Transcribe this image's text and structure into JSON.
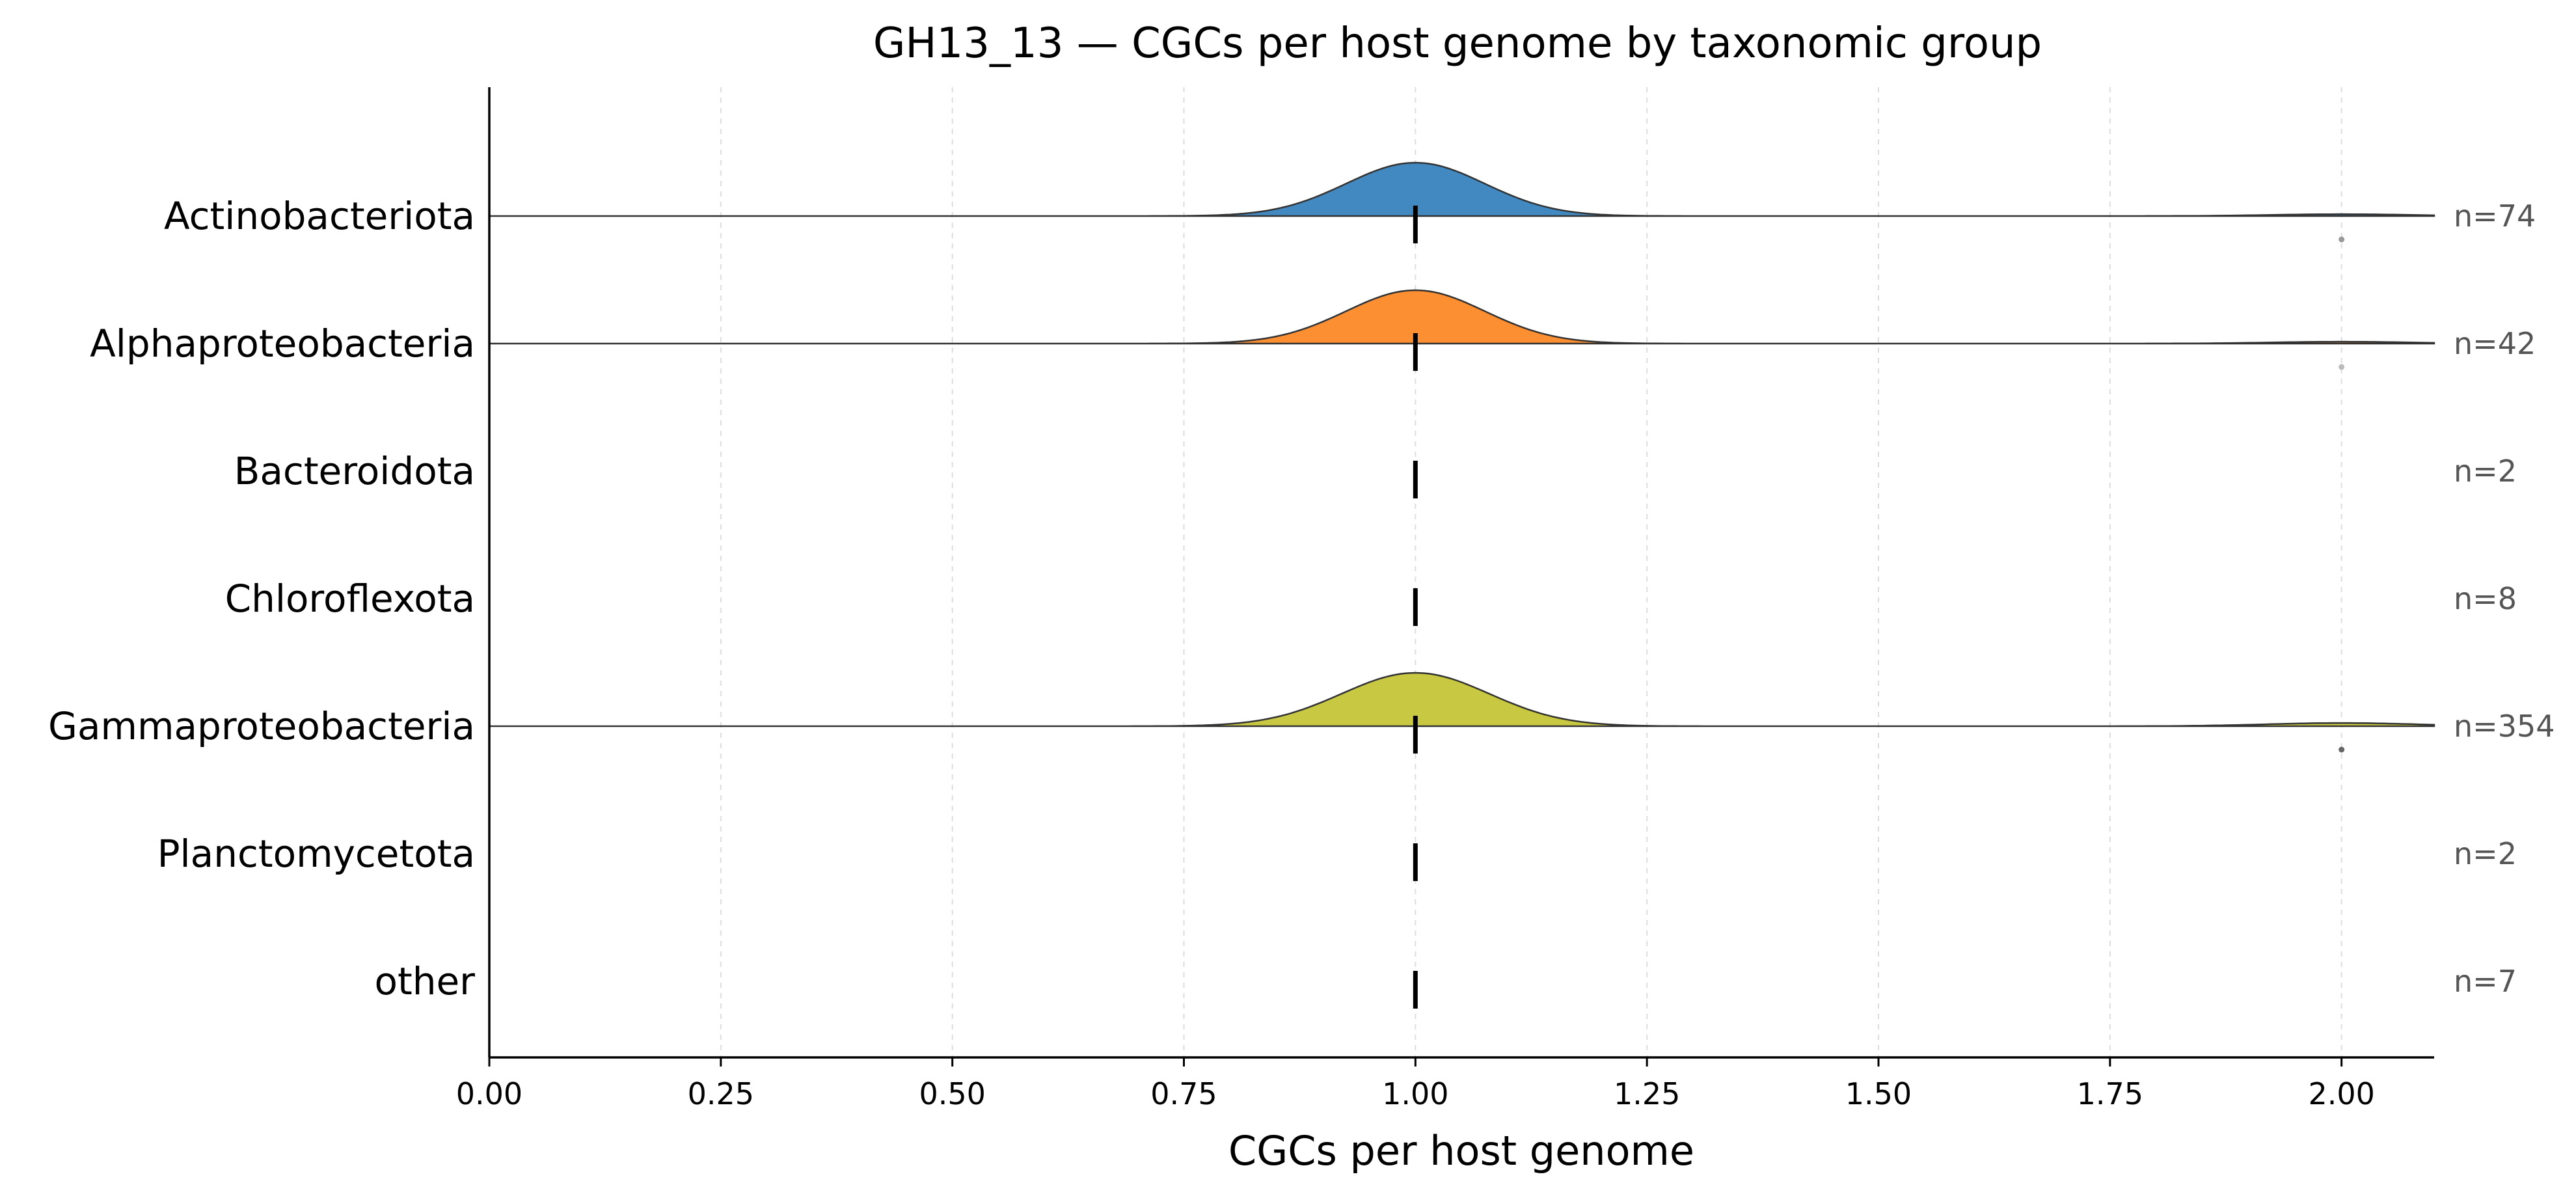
{
  "chart_data": {
    "type": "ridgeline",
    "title": "GH13_13 — CGCs per host genome by taxonomic group",
    "xlabel": "CGCs per host genome",
    "ylabel": "",
    "xlim": [
      0.0,
      2.1
    ],
    "x_ticks": [
      0.0,
      0.25,
      0.5,
      0.75,
      1.0,
      1.25,
      1.5,
      1.75,
      2.0
    ],
    "x_tick_labels": [
      "0.00",
      "0.25",
      "0.50",
      "0.75",
      "1.00",
      "1.25",
      "1.50",
      "1.75",
      "2.00"
    ],
    "grid": "x-dashed",
    "groups": [
      {
        "name": "Actinobacteriota",
        "n_label": "n=74",
        "n": 74,
        "median": 1.0,
        "color": "#4289c1",
        "has_density": true,
        "peak": 1.0,
        "spread": 0.075,
        "secondary_mode": 2.0,
        "secondary_rel_height": 0.035,
        "outlier_x": 2.0,
        "outlier_color": "#999999"
      },
      {
        "name": "Alphaproteobacteria",
        "n_label": "n=42",
        "n": 42,
        "median": 1.0,
        "color": "#fd8f33",
        "has_density": true,
        "peak": 1.0,
        "spread": 0.075,
        "secondary_mode": 2.0,
        "secondary_rel_height": 0.035,
        "outlier_x": 2.0,
        "outlier_color": "#bbbbbb"
      },
      {
        "name": "Bacteroidota",
        "n_label": "n=2",
        "n": 2,
        "median": 1.0,
        "color": "#000000",
        "has_density": false
      },
      {
        "name": "Chloroflexota",
        "n_label": "n=8",
        "n": 8,
        "median": 1.0,
        "color": "#000000",
        "has_density": false
      },
      {
        "name": "Gammaproteobacteria",
        "n_label": "n=354",
        "n": 354,
        "median": 1.0,
        "color": "#c8c842",
        "has_density": true,
        "peak": 1.0,
        "spread": 0.08,
        "secondary_mode": 2.0,
        "secondary_rel_height": 0.06,
        "outlier_x": 2.0,
        "outlier_color": "#666666"
      },
      {
        "name": "Planctomycetota",
        "n_label": "n=2",
        "n": 2,
        "median": 1.0,
        "color": "#000000",
        "has_density": false
      },
      {
        "name": "other",
        "n_label": "n=7",
        "n": 7,
        "median": 1.0,
        "color": "#000000",
        "has_density": false
      }
    ]
  }
}
